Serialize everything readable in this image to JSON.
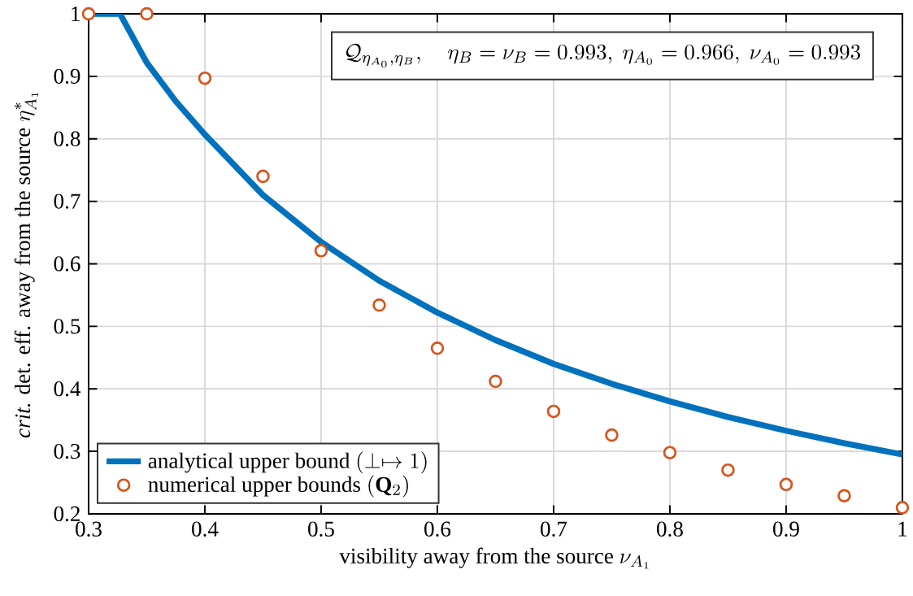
{
  "chart_data": {
    "type": "line",
    "xlabel": "\\mbox{visibility away from the source }\\nu_{A_1}",
    "ylabel": "\\mbox{\\textit{crit.} det. eff. away from the source }\\eta^*_{A_1}",
    "annotations": [
      "\\mathcal{Q}_{\\eta_{A_0},\\eta_B},\\quad \\eta_B=\\nu_B=0.993,\\ \\eta_{A_0}=0.966,\\ \\nu_{A_0}=0.993"
    ],
    "xlim": [
      0.3,
      1
    ],
    "ylim": [
      0.2,
      1
    ],
    "xticks": [
      0.3,
      0.4,
      0.5,
      0.6,
      0.7,
      0.8,
      0.9,
      1
    ],
    "yticks": [
      0.2,
      0.3,
      0.4,
      0.5,
      0.6,
      0.7,
      0.8,
      0.9,
      1
    ],
    "grid": true,
    "legend": "bottom left",
    "series": [
      {
        "name": "\\mbox{analytical upper bound }(\\perp\\mapsto 1)",
        "color": "#0072bd",
        "marker": "none",
        "line_style": "solid",
        "x": [
          0.3,
          0.327,
          0.35,
          0.375,
          0.4,
          0.45,
          0.5,
          0.55,
          0.6,
          0.65,
          0.7,
          0.75,
          0.8,
          0.85,
          0.9,
          0.95,
          1
        ],
        "values": [
          1,
          1,
          0.922,
          0.86,
          0.807,
          0.71,
          0.635,
          0.573,
          0.522,
          0.478,
          0.44,
          0.408,
          0.38,
          0.355,
          0.333,
          0.313,
          0.295
        ]
      },
      {
        "name": "\\mbox{numerical upper bounds }(\\mathbf{Q}_2)",
        "type": "scatter",
        "color": "#d95319",
        "marker": "circle",
        "x": [
          0.3,
          0.35,
          0.4,
          0.45,
          0.5,
          0.55,
          0.6,
          0.65,
          0.7,
          0.75,
          0.8,
          0.85,
          0.9,
          0.95,
          1
        ],
        "values": [
          1,
          1,
          0.897,
          0.74,
          0.621,
          0.534,
          0.465,
          0.412,
          0.364,
          0.326,
          0.298,
          0.27,
          0.247,
          0.229,
          0.21
        ]
      }
    ]
  }
}
